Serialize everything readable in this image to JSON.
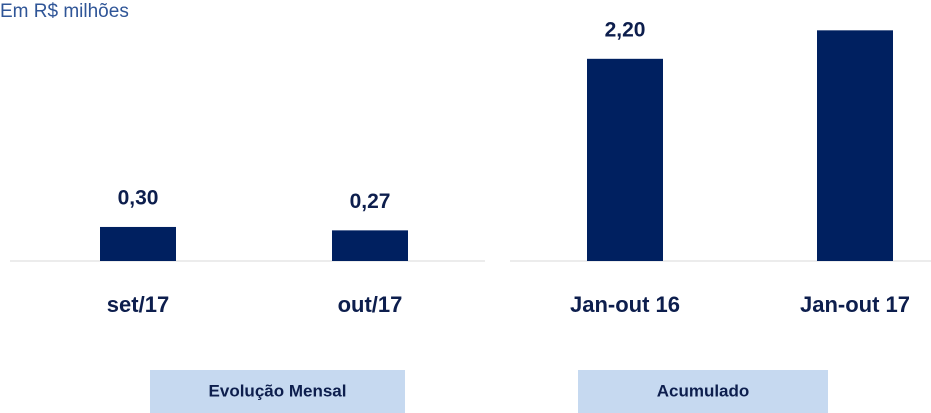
{
  "unit_label": "Em R$ milhões",
  "chart_data": [
    {
      "type": "bar",
      "caption": "Evolução Mensal",
      "categories": [
        "set/17",
        "out/17"
      ],
      "values": [
        0.3,
        0.27
      ],
      "value_labels": [
        "0,30",
        "0,27"
      ],
      "color": "#002060",
      "ylim": [
        0,
        2.3
      ]
    },
    {
      "type": "bar",
      "caption": "Acumulado",
      "categories": [
        "Jan-out 16",
        "Jan-out 17"
      ],
      "values": [
        2.2,
        2.51
      ],
      "value_labels": [
        "2,20",
        null
      ],
      "color": "#002060",
      "ylim": [
        0,
        2.84
      ]
    }
  ]
}
